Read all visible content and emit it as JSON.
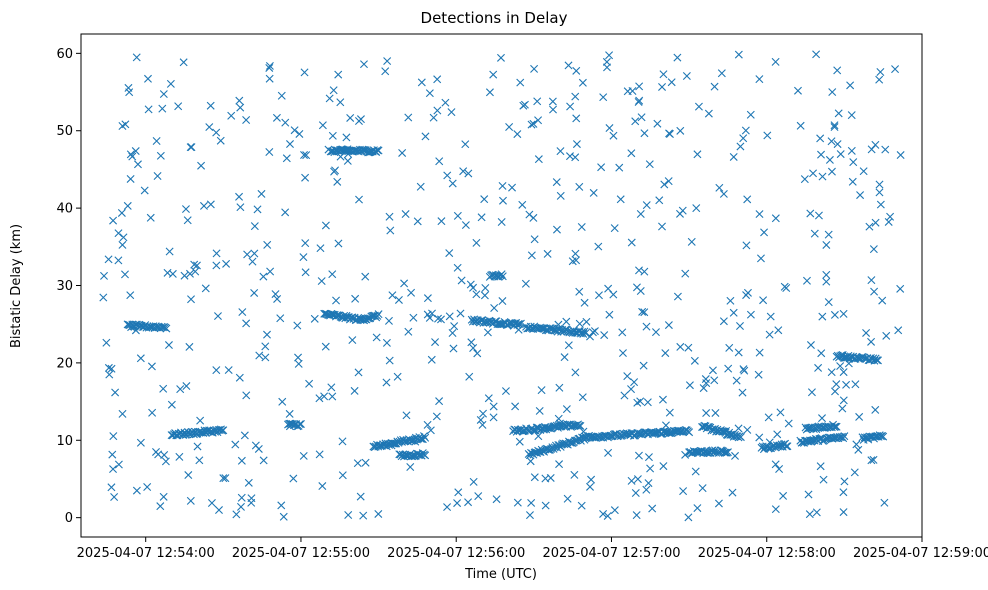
{
  "chart_data": {
    "type": "scatter",
    "title": "Detections in Delay",
    "xlabel": "Time (UTC)",
    "ylabel": "Bistatic Delay (km)",
    "marker": "x",
    "color": "#1f77b4",
    "grid": false,
    "x_range": [
      "2025-04-07 12:53:35",
      "2025-04-07 12:59:00"
    ],
    "ylim": [
      -2.5,
      62.5
    ],
    "x_ticks": [
      "2025-04-07 12:54:00",
      "2025-04-07 12:55:00",
      "2025-04-07 12:56:00",
      "2025-04-07 12:57:00",
      "2025-04-07 12:58:00",
      "2025-04-07 12:59:00"
    ],
    "y_ticks": [
      0,
      10,
      20,
      30,
      40,
      50,
      60
    ],
    "t_start": "2025-04-07 12:53:43",
    "t_end": "2025-04-07 12:58:53",
    "tracks": [
      {
        "t0": "2025-04-07 12:53:53",
        "t1": "2025-04-07 12:54:08",
        "d0": 24.8,
        "d1": 24.6
      },
      {
        "t0": "2025-04-07 12:54:10",
        "t1": "2025-04-07 12:54:30",
        "d0": 10.7,
        "d1": 11.3
      },
      {
        "t0": "2025-04-07 12:54:55",
        "t1": "2025-04-07 12:55:00",
        "d0": 12.0,
        "d1": 12.0
      },
      {
        "t0": "2025-04-07 12:55:09",
        "t1": "2025-04-07 12:55:23",
        "d0": 26.3,
        "d1": 25.6
      },
      {
        "t0": "2025-04-07 12:55:23",
        "t1": "2025-04-07 12:55:30",
        "d0": 25.6,
        "d1": 26.1
      },
      {
        "t0": "2025-04-07 12:55:12",
        "t1": "2025-04-07 12:55:30",
        "d0": 47.4,
        "d1": 47.4
      },
      {
        "t0": "2025-04-07 12:55:28",
        "t1": "2025-04-07 12:55:35",
        "d0": 9.2,
        "d1": 9.5
      },
      {
        "t0": "2025-04-07 12:55:35",
        "t1": "2025-04-07 12:55:48",
        "d0": 9.6,
        "d1": 10.4
      },
      {
        "t0": "2025-04-07 12:55:38",
        "t1": "2025-04-07 12:55:48",
        "d0": 8.0,
        "d1": 8.2
      },
      {
        "t0": "2025-04-07 12:56:06",
        "t1": "2025-04-07 12:56:25",
        "d0": 25.5,
        "d1": 24.9
      },
      {
        "t0": "2025-04-07 12:56:27",
        "t1": "2025-04-07 12:56:50",
        "d0": 24.6,
        "d1": 23.9
      },
      {
        "t0": "2025-04-07 12:56:22",
        "t1": "2025-04-07 12:56:48",
        "d0": 11.2,
        "d1": 12.0
      },
      {
        "t0": "2025-04-07 12:56:28",
        "t1": "2025-04-07 12:56:50",
        "d0": 8.1,
        "d1": 10.3
      },
      {
        "t0": "2025-04-07 12:56:13",
        "t1": "2025-04-07 12:56:18",
        "d0": 31.3,
        "d1": 31.3
      },
      {
        "t0": "2025-04-07 12:56:50",
        "t1": "2025-04-07 12:57:30",
        "d0": 10.4,
        "d1": 11.2
      },
      {
        "t0": "2025-04-07 12:57:35",
        "t1": "2025-04-07 12:57:50",
        "d0": 11.8,
        "d1": 10.4
      },
      {
        "t0": "2025-04-07 12:57:30",
        "t1": "2025-04-07 12:57:45",
        "d0": 8.5,
        "d1": 8.5
      },
      {
        "t0": "2025-04-07 12:57:58",
        "t1": "2025-04-07 12:58:08",
        "d0": 9.0,
        "d1": 9.4
      },
      {
        "t0": "2025-04-07 12:58:13",
        "t1": "2025-04-07 12:58:30",
        "d0": 9.8,
        "d1": 10.4
      },
      {
        "t0": "2025-04-07 12:58:15",
        "t1": "2025-04-07 12:58:27",
        "d0": 11.5,
        "d1": 11.9
      },
      {
        "t0": "2025-04-07 12:58:27",
        "t1": "2025-04-07 12:58:43",
        "d0": 20.9,
        "d1": 20.4
      },
      {
        "t0": "2025-04-07 12:58:37",
        "t1": "2025-04-07 12:58:45",
        "d0": 10.2,
        "d1": 10.5
      }
    ],
    "scatter_count": 650
  }
}
